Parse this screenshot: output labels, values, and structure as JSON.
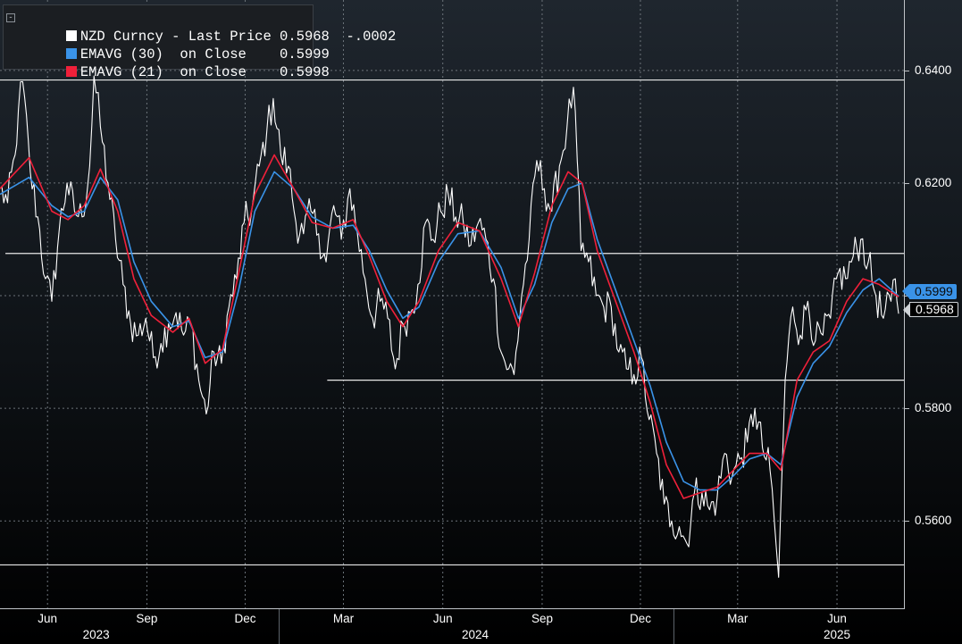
{
  "legend": {
    "rows": [
      {
        "text": "NZD Curncy - Last Price 0.5968  -.0002",
        "color": "#ffffff"
      },
      {
        "text": "EMAVG (30)  on Close    0.5999",
        "color": "#3a93e8"
      },
      {
        "text": "EMAVG (21)  on Close    0.5998",
        "color": "#f0203a"
      }
    ]
  },
  "price_tags": {
    "ema30": "0.5999",
    "last": "0.5968"
  },
  "chart_data": {
    "type": "line",
    "title": "",
    "xlabel": "",
    "ylabel": "",
    "ylim": [
      0.5445,
      0.6525
    ],
    "grid": true,
    "legend_position": "top-left",
    "y_ticks": [
      "0.5600",
      "0.5800",
      "0.6000",
      "0.6200",
      "0.6400"
    ],
    "y_tick_values": [
      0.56,
      0.58,
      0.6,
      0.62,
      0.64
    ],
    "x_ticks": [
      "Jun",
      "Sep",
      "Dec",
      "Mar",
      "Jun",
      "Sep",
      "Dec",
      "Mar",
      "Jun"
    ],
    "x_tick_dates": [
      "2023-06-01",
      "2023-09-01",
      "2023-12-01",
      "2024-03-01",
      "2024-06-01",
      "2024-09-01",
      "2024-12-01",
      "2025-03-01",
      "2025-06-01"
    ],
    "year_labels": [
      "2023",
      "2024",
      "2025"
    ],
    "year_label_dates": [
      "2023-07-16",
      "2024-07-01",
      "2025-06-01"
    ],
    "year_boundaries": [
      "2024-01-01",
      "2025-01-01"
    ],
    "x_range": [
      "2023-04-18",
      "2025-08-02"
    ],
    "horizontal_lines": [
      {
        "value": 0.6383,
        "from": "2023-04-18"
      },
      {
        "value": 0.6075,
        "from": "2023-04-23"
      },
      {
        "value": 0.585,
        "from": "2024-02-15"
      },
      {
        "value": 0.5522,
        "from": "2023-04-18"
      }
    ],
    "series": [
      {
        "name": "NZD Curncy - Last Price",
        "color": "#ffffff",
        "points": [
          [
            "2023-04-18",
            0.619
          ],
          [
            "2023-04-25",
            0.6165
          ],
          [
            "2023-05-02",
            0.625
          ],
          [
            "2023-05-05",
            0.633
          ],
          [
            "2023-05-09",
            0.638
          ],
          [
            "2023-05-16",
            0.622
          ],
          [
            "2023-05-23",
            0.614
          ],
          [
            "2023-05-30",
            0.603
          ],
          [
            "2023-06-05",
            0.599
          ],
          [
            "2023-06-12",
            0.612
          ],
          [
            "2023-06-19",
            0.62
          ],
          [
            "2023-06-26",
            0.615
          ],
          [
            "2023-07-03",
            0.614
          ],
          [
            "2023-07-10",
            0.623
          ],
          [
            "2023-07-14",
            0.639
          ],
          [
            "2023-07-20",
            0.63
          ],
          [
            "2023-07-27",
            0.62
          ],
          [
            "2023-08-03",
            0.61
          ],
          [
            "2023-08-10",
            0.602
          ],
          [
            "2023-08-17",
            0.595
          ],
          [
            "2023-08-24",
            0.593
          ],
          [
            "2023-08-31",
            0.596
          ],
          [
            "2023-09-07",
            0.589
          ],
          [
            "2023-09-14",
            0.5915
          ],
          [
            "2023-09-21",
            0.595
          ],
          [
            "2023-09-28",
            0.597
          ],
          [
            "2023-10-05",
            0.593
          ],
          [
            "2023-10-12",
            0.595
          ],
          [
            "2023-10-19",
            0.585
          ],
          [
            "2023-10-26",
            0.579
          ],
          [
            "2023-11-02",
            0.59
          ],
          [
            "2023-11-09",
            0.588
          ],
          [
            "2023-11-16",
            0.598
          ],
          [
            "2023-11-23",
            0.603
          ],
          [
            "2023-11-30",
            0.613
          ],
          [
            "2023-12-07",
            0.615
          ],
          [
            "2023-12-14",
            0.623
          ],
          [
            "2023-12-21",
            0.629
          ],
          [
            "2023-12-27",
            0.635
          ],
          [
            "2024-01-03",
            0.625
          ],
          [
            "2024-01-10",
            0.623
          ],
          [
            "2024-01-17",
            0.613
          ],
          [
            "2024-01-24",
            0.611
          ],
          [
            "2024-01-31",
            0.615
          ],
          [
            "2024-02-07",
            0.611
          ],
          [
            "2024-02-14",
            0.606
          ],
          [
            "2024-02-21",
            0.616
          ],
          [
            "2024-02-28",
            0.61
          ],
          [
            "2024-03-07",
            0.619
          ],
          [
            "2024-03-14",
            0.611
          ],
          [
            "2024-03-21",
            0.603
          ],
          [
            "2024-03-28",
            0.596
          ],
          [
            "2024-04-04",
            0.599
          ],
          [
            "2024-04-11",
            0.596
          ],
          [
            "2024-04-18",
            0.587
          ],
          [
            "2024-04-25",
            0.595
          ],
          [
            "2024-05-02",
            0.597
          ],
          [
            "2024-05-09",
            0.602
          ],
          [
            "2024-05-16",
            0.613
          ],
          [
            "2024-05-23",
            0.61
          ],
          [
            "2024-05-30",
            0.615
          ],
          [
            "2024-06-06",
            0.618
          ],
          [
            "2024-06-13",
            0.614
          ],
          [
            "2024-06-20",
            0.613
          ],
          [
            "2024-06-27",
            0.609
          ],
          [
            "2024-07-04",
            0.613
          ],
          [
            "2024-07-11",
            0.61
          ],
          [
            "2024-07-18",
            0.603
          ],
          [
            "2024-07-25",
            0.59
          ],
          [
            "2024-08-01",
            0.587
          ],
          [
            "2024-08-06",
            0.586
          ],
          [
            "2024-08-13",
            0.6
          ],
          [
            "2024-08-20",
            0.61
          ],
          [
            "2024-08-27",
            0.624
          ],
          [
            "2024-09-03",
            0.619
          ],
          [
            "2024-09-10",
            0.615
          ],
          [
            "2024-09-17",
            0.623
          ],
          [
            "2024-09-24",
            0.63
          ],
          [
            "2024-09-30",
            0.637
          ],
          [
            "2024-10-07",
            0.608
          ],
          [
            "2024-10-14",
            0.606
          ],
          [
            "2024-10-21",
            0.6
          ],
          [
            "2024-10-28",
            0.598
          ],
          [
            "2024-11-04",
            0.598
          ],
          [
            "2024-11-11",
            0.59
          ],
          [
            "2024-11-18",
            0.587
          ],
          [
            "2024-11-25",
            0.586
          ],
          [
            "2024-12-02",
            0.589
          ],
          [
            "2024-12-09",
            0.578
          ],
          [
            "2024-12-16",
            0.572
          ],
          [
            "2024-12-23",
            0.563
          ],
          [
            "2024-12-30",
            0.56
          ],
          [
            "2025-01-06",
            0.559
          ],
          [
            "2025-01-13",
            0.556
          ],
          [
            "2025-01-20",
            0.565
          ],
          [
            "2025-01-27",
            0.565
          ],
          [
            "2025-02-03",
            0.562
          ],
          [
            "2025-02-10",
            0.564
          ],
          [
            "2025-02-17",
            0.572
          ],
          [
            "2025-02-24",
            0.568
          ],
          [
            "2025-03-03",
            0.571
          ],
          [
            "2025-03-10",
            0.574
          ],
          [
            "2025-03-17",
            0.58
          ],
          [
            "2025-03-24",
            0.573
          ],
          [
            "2025-03-31",
            0.569
          ],
          [
            "2025-04-04",
            0.56
          ],
          [
            "2025-04-08",
            0.55
          ],
          [
            "2025-04-14",
            0.585
          ],
          [
            "2025-04-21",
            0.598
          ],
          [
            "2025-04-28",
            0.593
          ],
          [
            "2025-05-05",
            0.599
          ],
          [
            "2025-05-12",
            0.592
          ],
          [
            "2025-05-19",
            0.593
          ],
          [
            "2025-05-26",
            0.596
          ],
          [
            "2025-06-02",
            0.604
          ],
          [
            "2025-06-09",
            0.603
          ],
          [
            "2025-06-16",
            0.607
          ],
          [
            "2025-06-23",
            0.61
          ],
          [
            "2025-06-30",
            0.606
          ],
          [
            "2025-07-07",
            0.6
          ],
          [
            "2025-07-14",
            0.596
          ],
          [
            "2025-07-21",
            0.599
          ],
          [
            "2025-07-25",
            0.603
          ],
          [
            "2025-07-28",
            0.5968
          ]
        ]
      },
      {
        "name": "EMAVG (30) on Close",
        "color": "#3a93e8",
        "points": [
          [
            "2023-04-18",
            0.618
          ],
          [
            "2023-05-15",
            0.621
          ],
          [
            "2023-06-05",
            0.616
          ],
          [
            "2023-06-20",
            0.614
          ],
          [
            "2023-07-05",
            0.615
          ],
          [
            "2023-07-20",
            0.621
          ],
          [
            "2023-08-05",
            0.617
          ],
          [
            "2023-08-20",
            0.606
          ],
          [
            "2023-09-05",
            0.599
          ],
          [
            "2023-09-25",
            0.5945
          ],
          [
            "2023-10-10",
            0.5955
          ],
          [
            "2023-10-25",
            0.589
          ],
          [
            "2023-11-10",
            0.59
          ],
          [
            "2023-11-25",
            0.601
          ],
          [
            "2023-12-10",
            0.615
          ],
          [
            "2023-12-28",
            0.622
          ],
          [
            "2024-01-15",
            0.619
          ],
          [
            "2024-02-01",
            0.614
          ],
          [
            "2024-02-20",
            0.612
          ],
          [
            "2024-03-10",
            0.6125
          ],
          [
            "2024-03-25",
            0.608
          ],
          [
            "2024-04-10",
            0.601
          ],
          [
            "2024-04-25",
            0.596
          ],
          [
            "2024-05-10",
            0.598
          ],
          [
            "2024-05-28",
            0.606
          ],
          [
            "2024-06-15",
            0.611
          ],
          [
            "2024-07-05",
            0.6115
          ],
          [
            "2024-07-25",
            0.605
          ],
          [
            "2024-08-10",
            0.596
          ],
          [
            "2024-08-25",
            0.602
          ],
          [
            "2024-09-10",
            0.613
          ],
          [
            "2024-09-25",
            0.619
          ],
          [
            "2024-10-08",
            0.62
          ],
          [
            "2024-10-22",
            0.61
          ],
          [
            "2024-11-08",
            0.601
          ],
          [
            "2024-11-25",
            0.592
          ],
          [
            "2024-12-10",
            0.584
          ],
          [
            "2024-12-25",
            0.574
          ],
          [
            "2025-01-10",
            0.567
          ],
          [
            "2025-01-25",
            0.5655
          ],
          [
            "2025-02-10",
            0.5655
          ],
          [
            "2025-02-25",
            0.568
          ],
          [
            "2025-03-12",
            0.571
          ],
          [
            "2025-03-28",
            0.572
          ],
          [
            "2025-04-10",
            0.57
          ],
          [
            "2025-04-25",
            0.582
          ],
          [
            "2025-05-10",
            0.588
          ],
          [
            "2025-05-25",
            0.591
          ],
          [
            "2025-06-10",
            0.597
          ],
          [
            "2025-06-25",
            0.601
          ],
          [
            "2025-07-10",
            0.603
          ],
          [
            "2025-07-28",
            0.5999
          ]
        ]
      },
      {
        "name": "EMAVG (21) on Close",
        "color": "#f0203a",
        "points": [
          [
            "2023-04-18",
            0.619
          ],
          [
            "2023-05-15",
            0.6245
          ],
          [
            "2023-06-05",
            0.615
          ],
          [
            "2023-06-20",
            0.6135
          ],
          [
            "2023-07-05",
            0.616
          ],
          [
            "2023-07-20",
            0.6225
          ],
          [
            "2023-08-05",
            0.615
          ],
          [
            "2023-08-20",
            0.603
          ],
          [
            "2023-09-05",
            0.5965
          ],
          [
            "2023-09-25",
            0.5935
          ],
          [
            "2023-10-10",
            0.596
          ],
          [
            "2023-10-25",
            0.588
          ],
          [
            "2023-11-10",
            0.5905
          ],
          [
            "2023-11-25",
            0.604
          ],
          [
            "2023-12-10",
            0.618
          ],
          [
            "2023-12-28",
            0.625
          ],
          [
            "2024-01-15",
            0.619
          ],
          [
            "2024-02-01",
            0.613
          ],
          [
            "2024-02-20",
            0.612
          ],
          [
            "2024-03-10",
            0.6135
          ],
          [
            "2024-03-25",
            0.607
          ],
          [
            "2024-04-10",
            0.599
          ],
          [
            "2024-04-25",
            0.5945
          ],
          [
            "2024-05-10",
            0.599
          ],
          [
            "2024-05-28",
            0.608
          ],
          [
            "2024-06-15",
            0.613
          ],
          [
            "2024-07-05",
            0.6115
          ],
          [
            "2024-07-25",
            0.603
          ],
          [
            "2024-08-10",
            0.5945
          ],
          [
            "2024-08-25",
            0.604
          ],
          [
            "2024-09-10",
            0.616
          ],
          [
            "2024-09-25",
            0.622
          ],
          [
            "2024-10-08",
            0.62
          ],
          [
            "2024-10-22",
            0.608
          ],
          [
            "2024-11-08",
            0.599
          ],
          [
            "2024-11-25",
            0.59
          ],
          [
            "2024-12-10",
            0.581
          ],
          [
            "2024-12-25",
            0.57
          ],
          [
            "2025-01-10",
            0.564
          ],
          [
            "2025-01-25",
            0.565
          ],
          [
            "2025-02-10",
            0.566
          ],
          [
            "2025-02-25",
            0.569
          ],
          [
            "2025-03-12",
            0.572
          ],
          [
            "2025-03-28",
            0.572
          ],
          [
            "2025-04-10",
            0.569
          ],
          [
            "2025-04-25",
            0.585
          ],
          [
            "2025-05-10",
            0.59
          ],
          [
            "2025-05-25",
            0.592
          ],
          [
            "2025-06-10",
            0.599
          ],
          [
            "2025-06-25",
            0.603
          ],
          [
            "2025-07-10",
            0.602
          ],
          [
            "2025-07-28",
            0.5998
          ]
        ]
      }
    ]
  }
}
